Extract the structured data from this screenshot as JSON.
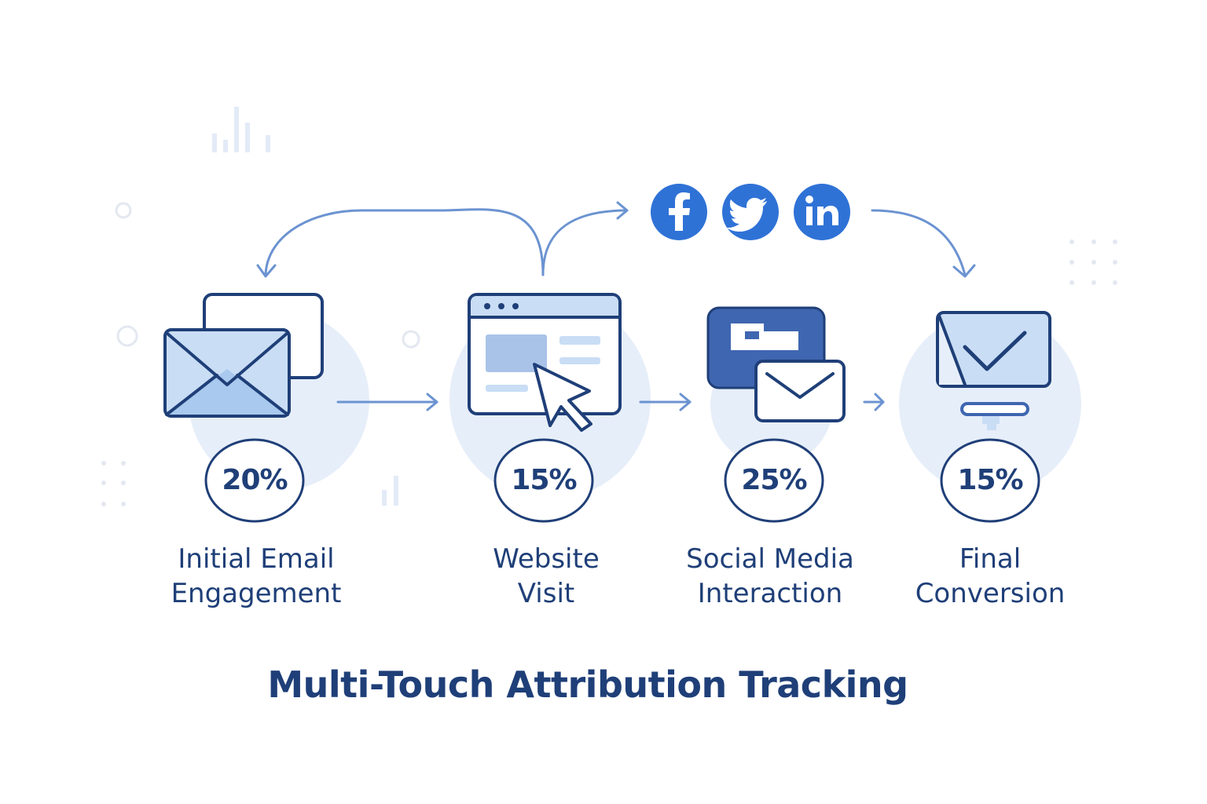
{
  "title": "Multi-Touch Attribution Tracking",
  "touchpoints": [
    {
      "percent": "20%",
      "label_line1": "Initial Email",
      "label_line2": "Engagement"
    },
    {
      "percent": "15%",
      "label_line1": "Website",
      "label_line2": "Visit"
    },
    {
      "percent": "25%",
      "label_line1": "Social Media",
      "label_line2": "Interaction"
    },
    {
      "percent": "15%",
      "label_line1": "Final",
      "label_line2": "Conversion"
    }
  ],
  "social_icons": [
    "facebook-icon",
    "twitter-icon",
    "linkedin-icon"
  ],
  "colors": {
    "primary": "#1f3f78",
    "accent": "#2f72d6",
    "arrow": "#6b93d1",
    "halo": "#e6eef9",
    "fill_light": "#c9ddf5",
    "fill_dark": "#3f66b0"
  }
}
